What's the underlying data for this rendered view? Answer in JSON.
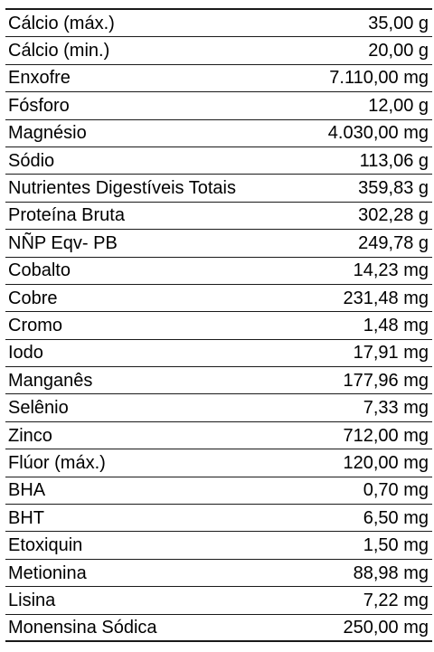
{
  "rows": [
    {
      "name": "Cálcio (máx.)",
      "value": "35,00 g"
    },
    {
      "name": "Cálcio (min.)",
      "value": "20,00 g"
    },
    {
      "name": "Enxofre",
      "value": "7.110,00 mg"
    },
    {
      "name": "Fósforo",
      "value": "12,00 g"
    },
    {
      "name": "Magnésio",
      "value": "4.030,00 mg"
    },
    {
      "name": "Sódio",
      "value": "113,06 g"
    },
    {
      "name": "Nutrientes Digestíveis Totais",
      "value": "359,83 g"
    },
    {
      "name": "Proteína Bruta",
      "value": "302,28 g"
    },
    {
      "name": "NÑP Eqv- PB",
      "value": "249,78 g"
    },
    {
      "name": "Cobalto",
      "value": "14,23 mg"
    },
    {
      "name": "Cobre",
      "value": "231,48 mg"
    },
    {
      "name": "Cromo",
      "value": "1,48 mg"
    },
    {
      "name": "Iodo",
      "value": "17,91 mg"
    },
    {
      "name": "Manganês",
      "value": "177,96 mg"
    },
    {
      "name": "Selênio",
      "value": "7,33 mg"
    },
    {
      "name": "Zinco",
      "value": "712,00 mg"
    },
    {
      "name": "Flúor (máx.)",
      "value": "120,00 mg"
    },
    {
      "name": "BHA",
      "value": "0,70 mg"
    },
    {
      "name": "BHT",
      "value": "6,50 mg"
    },
    {
      "name": "Etoxiquin",
      "value": "1,50 mg"
    },
    {
      "name": "Metionina",
      "value": "88,98 mg"
    },
    {
      "name": "Lisina",
      "value": "7,22 mg"
    },
    {
      "name": "Monensina Sódica",
      "value": "250,00 mg"
    }
  ]
}
